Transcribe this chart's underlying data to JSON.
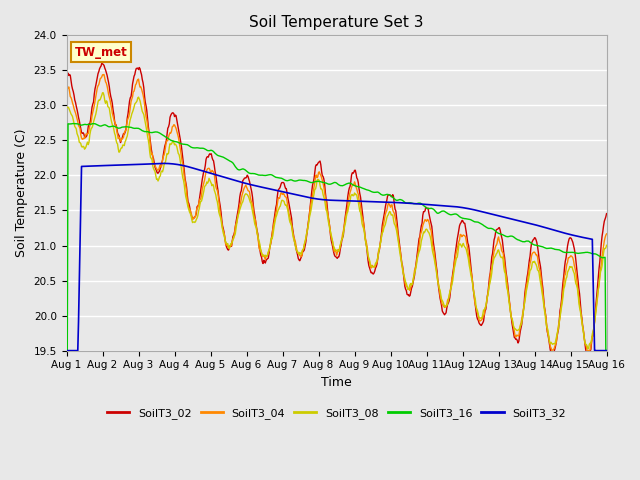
{
  "title": "Soil Temperature Set 3",
  "xlabel": "Time",
  "ylabel": "Soil Temperature (C)",
  "ylim": [
    19.5,
    24.0
  ],
  "series_colors": {
    "SoilT3_02": "#cc0000",
    "SoilT3_04": "#ff8800",
    "SoilT3_08": "#cccc00",
    "SoilT3_16": "#00cc00",
    "SoilT3_32": "#0000cc"
  },
  "annotation_label": "TW_met",
  "annotation_color": "#cc0000",
  "annotation_bg": "#ffffcc",
  "annotation_border": "#cc8800",
  "plot_bg_color": "#e8e8e8",
  "grid_color": "#ffffff",
  "x_tick_labels": [
    "Aug 1",
    "Aug 2",
    "Aug 3",
    "Aug 4",
    "Aug 5",
    "Aug 6",
    "Aug 7",
    "Aug 8",
    "Aug 9",
    "Aug 10",
    "Aug 11",
    "Aug 12",
    "Aug 13",
    "Aug 14",
    "Aug 15",
    "Aug 16"
  ],
  "n_days": 16,
  "points_per_day": 48
}
